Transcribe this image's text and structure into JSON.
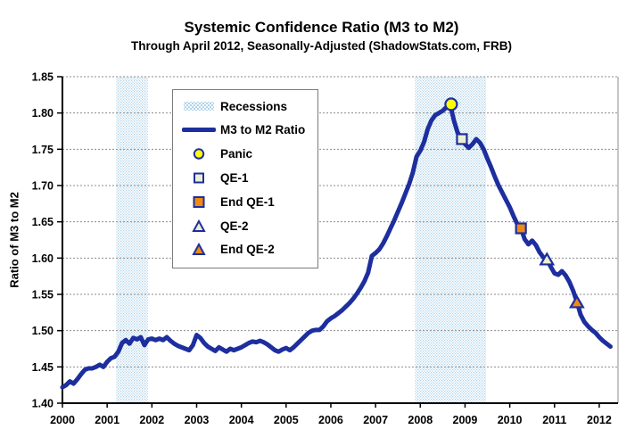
{
  "header": {
    "title": "Systemic Confidence Ratio (M3 to M2)",
    "subtitle": "Through April 2012, Seasonally-Adjusted (ShadowStats.com, FRB)"
  },
  "legend": {
    "items": [
      {
        "label": "Recessions",
        "swatch": "pattern"
      },
      {
        "label": "M3 to M2 Ratio",
        "swatch": "line"
      },
      {
        "label": "Panic",
        "swatch": "circle",
        "fill": "#ffff00"
      },
      {
        "label": "QE-1",
        "swatch": "square",
        "fill": "#ecf0cf"
      },
      {
        "label": "End QE-1",
        "swatch": "square",
        "fill": "#f18a10"
      },
      {
        "label": "QE-2",
        "swatch": "triangle",
        "fill": "#ecf0cf"
      },
      {
        "label": "End QE-2",
        "swatch": "triangle",
        "fill": "#f18a10"
      }
    ]
  },
  "chart_data": {
    "type": "line",
    "title": "Systemic Confidence Ratio (M3 to M2)",
    "subtitle": "Through April 2012, Seasonally-Adjusted (ShadowStats.com, FRB)",
    "xlabel": "",
    "ylabel": "Ratio of M3 to M2",
    "xlim": [
      2000,
      2012.42
    ],
    "ylim": [
      1.4,
      1.85
    ],
    "x_ticks": [
      "2000",
      "2001",
      "2002",
      "2003",
      "2004",
      "2005",
      "2006",
      "2007",
      "2008",
      "2009",
      "2010",
      "2011",
      "2012"
    ],
    "y_ticks": [
      "1.40",
      "1.45",
      "1.50",
      "1.55",
      "1.60",
      "1.65",
      "1.70",
      "1.75",
      "1.80",
      "1.85"
    ],
    "grid": "horizontal-dashed",
    "legend_position": "upper-left-inside",
    "recessions": [
      [
        2001.2,
        2001.91
      ],
      [
        2007.88,
        2009.47
      ]
    ],
    "series": [
      {
        "name": "M3 to M2 Ratio",
        "color": "#1d2e9e",
        "from": "2000-01",
        "to": "2012-04",
        "interval": "monthly",
        "values": [
          1.422,
          1.425,
          1.43,
          1.427,
          1.433,
          1.44,
          1.446,
          1.448,
          1.448,
          1.45,
          1.453,
          1.45,
          1.457,
          1.462,
          1.464,
          1.471,
          1.483,
          1.487,
          1.482,
          1.49,
          1.488,
          1.491,
          1.48,
          1.488,
          1.489,
          1.487,
          1.489,
          1.487,
          1.491,
          1.486,
          1.482,
          1.479,
          1.477,
          1.475,
          1.473,
          1.48,
          1.494,
          1.49,
          1.483,
          1.478,
          1.475,
          1.472,
          1.477,
          1.474,
          1.471,
          1.475,
          1.473,
          1.475,
          1.477,
          1.48,
          1.483,
          1.485,
          1.484,
          1.486,
          1.484,
          1.481,
          1.477,
          1.473,
          1.471,
          1.474,
          1.476,
          1.473,
          1.477,
          1.482,
          1.487,
          1.492,
          1.497,
          1.5,
          1.501,
          1.501,
          1.506,
          1.513,
          1.517,
          1.52,
          1.524,
          1.528,
          1.533,
          1.538,
          1.544,
          1.551,
          1.559,
          1.568,
          1.58,
          1.603,
          1.607,
          1.612,
          1.62,
          1.63,
          1.641,
          1.652,
          1.664,
          1.676,
          1.689,
          1.702,
          1.718,
          1.74,
          1.748,
          1.76,
          1.778,
          1.79,
          1.797,
          1.8,
          1.803,
          1.808,
          1.812,
          1.79,
          1.773,
          1.765,
          1.757,
          1.752,
          1.757,
          1.764,
          1.759,
          1.75,
          1.737,
          1.725,
          1.712,
          1.7,
          1.69,
          1.68,
          1.67,
          1.658,
          1.647,
          1.641,
          1.626,
          1.619,
          1.624,
          1.618,
          1.608,
          1.601,
          1.598,
          1.588,
          1.579,
          1.577,
          1.582,
          1.576,
          1.567,
          1.555,
          1.54,
          1.522,
          1.512,
          1.506,
          1.501,
          1.497,
          1.491,
          1.486,
          1.482,
          1.478
        ]
      }
    ],
    "markers": [
      {
        "name": "Panic",
        "shape": "circle",
        "fill": "#ffff00",
        "stroke": "#1d2e9e",
        "x": 2008.69,
        "y": 1.812
      },
      {
        "name": "QE-1",
        "shape": "square",
        "fill": "#ecf0cf",
        "stroke": "#1d2e9e",
        "x": 2008.93,
        "y": 1.764
      },
      {
        "name": "End QE-1",
        "shape": "square",
        "fill": "#f18a10",
        "stroke": "#1d2e9e",
        "x": 2010.25,
        "y": 1.641
      },
      {
        "name": "QE-2",
        "shape": "triangle",
        "fill": "#ecf0cf",
        "stroke": "#1d2e9e",
        "x": 2010.83,
        "y": 1.598
      },
      {
        "name": "End QE-2",
        "shape": "triangle",
        "fill": "#f18a10",
        "stroke": "#1d2e9e",
        "x": 2011.5,
        "y": 1.539
      }
    ],
    "colors": {
      "line": "#1d2e9e",
      "recession_dot": "#a8cfe9",
      "grid": "#8c8c8c",
      "axis": "#000000",
      "plot_border": "#8c8c8c",
      "background": "#ffffff"
    }
  }
}
